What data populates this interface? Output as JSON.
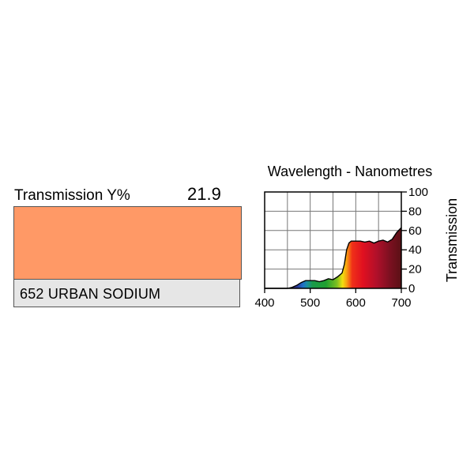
{
  "filter": {
    "transmission_label": "Transmission Y%",
    "transmission_value": "21.9",
    "name": "652 URBAN SODIUM",
    "swatch_color": "#FF9966"
  },
  "chart_data": {
    "type": "area",
    "title": "Wavelength - Nanometres",
    "xlabel": "",
    "ylabel": "Transmission",
    "xlim": [
      400,
      700
    ],
    "ylim": [
      0,
      100
    ],
    "x_ticks": [
      "400",
      "500",
      "600",
      "700"
    ],
    "y_ticks": [
      "0",
      "20",
      "40",
      "60",
      "80",
      "100"
    ],
    "grid": true,
    "fill": "visible-spectrum",
    "series": [
      {
        "x": [
          400,
          410,
          420,
          430,
          440,
          450,
          460,
          470,
          480,
          490,
          500,
          510,
          520,
          530,
          540,
          550,
          560,
          570,
          575,
          580,
          585,
          590,
          600,
          610,
          620,
          630,
          640,
          650,
          660,
          670,
          680,
          690,
          700
        ],
        "y": [
          0,
          0,
          0,
          0,
          0,
          0,
          1,
          3,
          6,
          8,
          8,
          8,
          7,
          8,
          10,
          9,
          12,
          16,
          25,
          40,
          47,
          49,
          49,
          49,
          48,
          49,
          47,
          49,
          50,
          48,
          51,
          58,
          63
        ]
      }
    ]
  }
}
